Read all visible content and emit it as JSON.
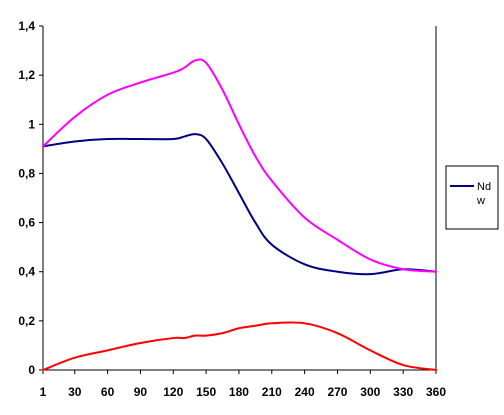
{
  "chart_data": {
    "type": "line",
    "title": "",
    "xlabel": "",
    "ylabel": "",
    "x": [
      1,
      30,
      60,
      90,
      120,
      130,
      140,
      150,
      165,
      180,
      195,
      210,
      240,
      270,
      300,
      330,
      360
    ],
    "x_ticks": [
      "1",
      "30",
      "60",
      "90",
      "120",
      "150",
      "180",
      "210",
      "240",
      "270",
      "300",
      "330",
      "360"
    ],
    "x_tick_values": [
      1,
      30,
      60,
      90,
      120,
      150,
      180,
      210,
      240,
      270,
      300,
      330,
      360
    ],
    "y_ticks": [
      "0",
      "0,2",
      "0,4",
      "0,6",
      "0,8",
      "1",
      "1,2",
      "1,4"
    ],
    "y_tick_values": [
      0,
      0.2,
      0.4,
      0.6,
      0.8,
      1.0,
      1.2,
      1.4
    ],
    "ylim": [
      0,
      1.4
    ],
    "xlim": [
      1,
      360
    ],
    "grid": false,
    "legend_position": "right",
    "legend_labels": [
      "Nd",
      "w"
    ],
    "series": [
      {
        "name": "Nd",
        "color": "#000080",
        "values": [
          0.91,
          0.93,
          0.94,
          0.94,
          0.94,
          0.95,
          0.96,
          0.94,
          0.84,
          0.72,
          0.6,
          0.51,
          0.43,
          0.4,
          0.39,
          0.41,
          0.4
        ]
      },
      {
        "color": "#ff00ff",
        "values": [
          0.91,
          1.03,
          1.12,
          1.17,
          1.21,
          1.23,
          1.26,
          1.25,
          1.14,
          1.0,
          0.87,
          0.77,
          0.62,
          0.53,
          0.45,
          0.41,
          0.4
        ]
      },
      {
        "color": "#ff0000",
        "values": [
          0.0,
          0.05,
          0.08,
          0.11,
          0.13,
          0.13,
          0.14,
          0.14,
          0.15,
          0.17,
          0.18,
          0.19,
          0.19,
          0.15,
          0.08,
          0.02,
          0.0
        ]
      }
    ]
  }
}
